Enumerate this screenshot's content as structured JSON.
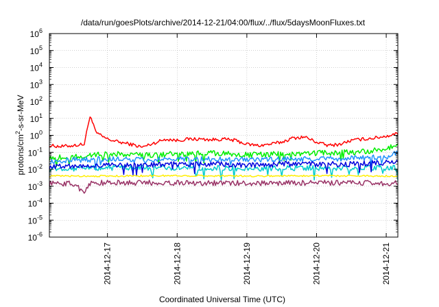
{
  "chart_data": {
    "type": "line",
    "title": "/data/run/goesPlots/archive/2014-12-21/04:00/flux/../flux/5daysMoonFluxes.txt",
    "xlabel": "Coordinated Universal Time (UTC)",
    "ylabel": {
      "pre": "protons/cm",
      "sup": "2",
      "post": "-s-sr-MeV"
    },
    "yscale": "log",
    "ylim": [
      1e-06,
      1000000.0
    ],
    "y_ticks": [
      {
        "base": "10",
        "exp": "-6",
        "value": 1e-06
      },
      {
        "base": "10",
        "exp": "-5",
        "value": 1e-05
      },
      {
        "base": "10",
        "exp": "-4",
        "value": 0.0001
      },
      {
        "base": "10",
        "exp": "-3",
        "value": 0.001
      },
      {
        "base": "10",
        "exp": "-2",
        "value": 0.01
      },
      {
        "base": "10",
        "exp": "-1",
        "value": 0.1
      },
      {
        "base": "10",
        "exp": "0",
        "value": 1
      },
      {
        "base": "10",
        "exp": "1",
        "value": 10
      },
      {
        "base": "10",
        "exp": "2",
        "value": 100
      },
      {
        "base": "10",
        "exp": "3",
        "value": 1000
      },
      {
        "base": "10",
        "exp": "4",
        "value": 10000
      },
      {
        "base": "10",
        "exp": "5",
        "value": 100000
      },
      {
        "base": "10",
        "exp": "6",
        "value": 1000000
      }
    ],
    "xlim": [
      "2014-12-16T04:00",
      "2014-12-21T04:00"
    ],
    "x_ticks": [
      {
        "label": "2014-12-17",
        "value": "2014-12-17T00:00"
      },
      {
        "label": "2014-12-18",
        "value": "2014-12-18T00:00"
      },
      {
        "label": "2014-12-19",
        "value": "2014-12-19T00:00"
      },
      {
        "label": "2014-12-20",
        "value": "2014-12-20T00:00"
      },
      {
        "label": "2014-12-21",
        "value": "2014-12-21T00:00"
      }
    ],
    "grid": true,
    "legend": "none",
    "series": [
      {
        "color": "#ff0000",
        "values": [
          [
            "2014-12-16T04:00",
            0.25
          ],
          [
            "2014-12-16T08:00",
            0.22
          ],
          [
            "2014-12-16T12:00",
            0.25
          ],
          [
            "2014-12-16T16:00",
            0.3
          ],
          [
            "2014-12-16T18:00",
            15.0
          ],
          [
            "2014-12-16T20:00",
            1.5
          ],
          [
            "2014-12-16T22:00",
            0.9
          ],
          [
            "2014-12-17T00:00",
            0.6
          ],
          [
            "2014-12-17T04:00",
            0.4
          ],
          [
            "2014-12-17T08:00",
            0.3
          ],
          [
            "2014-12-17T12:00",
            0.2
          ],
          [
            "2014-12-17T16:00",
            0.35
          ],
          [
            "2014-12-17T20:00",
            0.6
          ],
          [
            "2014-12-18T00:00",
            0.5
          ],
          [
            "2014-12-18T04:00",
            0.6
          ],
          [
            "2014-12-18T08:00",
            0.6
          ],
          [
            "2014-12-18T12:00",
            0.55
          ],
          [
            "2014-12-18T16:00",
            0.6
          ],
          [
            "2014-12-18T20:00",
            0.5
          ],
          [
            "2014-12-19T00:00",
            0.3
          ],
          [
            "2014-12-19T04:00",
            0.25
          ],
          [
            "2014-12-19T08:00",
            0.3
          ],
          [
            "2014-12-19T12:00",
            0.4
          ],
          [
            "2014-12-19T16:00",
            0.7
          ],
          [
            "2014-12-19T20:00",
            0.8
          ],
          [
            "2014-12-20T00:00",
            0.4
          ],
          [
            "2014-12-20T04:00",
            0.25
          ],
          [
            "2014-12-20T08:00",
            0.3
          ],
          [
            "2014-12-20T12:00",
            0.5
          ],
          [
            "2014-12-20T16:00",
            0.6
          ],
          [
            "2014-12-20T20:00",
            0.7
          ],
          [
            "2014-12-21T00:00",
            0.9
          ],
          [
            "2014-12-21T04:00",
            1.3
          ]
        ]
      },
      {
        "color": "#00ee00",
        "values": [
          [
            "2014-12-16T04:00",
            0.05
          ],
          [
            "2014-12-16T12:00",
            0.05
          ],
          [
            "2014-12-16T18:00",
            0.07
          ],
          [
            "2014-12-17T00:00",
            0.08
          ],
          [
            "2014-12-17T12:00",
            0.07
          ],
          [
            "2014-12-18T00:00",
            0.08
          ],
          [
            "2014-12-18T12:00",
            0.09
          ],
          [
            "2014-12-19T00:00",
            0.07
          ],
          [
            "2014-12-19T12:00",
            0.08
          ],
          [
            "2014-12-20T00:00",
            0.09
          ],
          [
            "2014-12-20T12:00",
            0.1
          ],
          [
            "2014-12-21T00:00",
            0.15
          ],
          [
            "2014-12-21T04:00",
            0.3
          ]
        ]
      },
      {
        "color": "#1e90ff",
        "values": [
          [
            "2014-12-16T04:00",
            0.03
          ],
          [
            "2014-12-16T12:00",
            0.035
          ],
          [
            "2014-12-17T00:00",
            0.04
          ],
          [
            "2014-12-17T12:00",
            0.035
          ],
          [
            "2014-12-18T00:00",
            0.04
          ],
          [
            "2014-12-18T12:00",
            0.04
          ],
          [
            "2014-12-19T00:00",
            0.035
          ],
          [
            "2014-12-19T12:00",
            0.04
          ],
          [
            "2014-12-20T00:00",
            0.04
          ],
          [
            "2014-12-20T12:00",
            0.045
          ],
          [
            "2014-12-21T00:00",
            0.05
          ],
          [
            "2014-12-21T04:00",
            0.1
          ]
        ]
      },
      {
        "color": "#00cccc",
        "values": [
          [
            "2014-12-16T04:00",
            0.01
          ],
          [
            "2014-12-17T00:00",
            0.012
          ],
          [
            "2014-12-18T00:00",
            0.012
          ],
          [
            "2014-12-19T00:00",
            0.011
          ],
          [
            "2014-12-20T00:00",
            0.012
          ],
          [
            "2014-12-21T04:00",
            0.012
          ]
        ]
      },
      {
        "color": "#0000dd",
        "values": [
          [
            "2014-12-16T04:00",
            0.015
          ],
          [
            "2014-12-16T12:00",
            0.015
          ],
          [
            "2014-12-17T00:00",
            0.018
          ],
          [
            "2014-12-17T12:00",
            0.017
          ],
          [
            "2014-12-18T00:00",
            0.02
          ],
          [
            "2014-12-18T12:00",
            0.02
          ],
          [
            "2014-12-19T00:00",
            0.018
          ],
          [
            "2014-12-19T12:00",
            0.02
          ],
          [
            "2014-12-20T00:00",
            0.02
          ],
          [
            "2014-12-20T12:00",
            0.02
          ],
          [
            "2014-12-21T00:00",
            0.025
          ],
          [
            "2014-12-21T04:00",
            0.03
          ]
        ]
      },
      {
        "color": "#ffee00",
        "values": [
          [
            "2014-12-16T04:00",
            0.004
          ],
          [
            "2014-12-17T00:00",
            0.004
          ],
          [
            "2014-12-18T00:00",
            0.0042
          ],
          [
            "2014-12-19T00:00",
            0.004
          ],
          [
            "2014-12-20T00:00",
            0.0042
          ],
          [
            "2014-12-21T04:00",
            0.004
          ]
        ]
      },
      {
        "color": "#993366",
        "values": [
          [
            "2014-12-16T04:00",
            0.0015
          ],
          [
            "2014-12-16T12:00",
            0.0014
          ],
          [
            "2014-12-16T16:00",
            0.0005
          ],
          [
            "2014-12-16T18:00",
            0.0015
          ],
          [
            "2014-12-17T00:00",
            0.0016
          ],
          [
            "2014-12-18T00:00",
            0.0016
          ],
          [
            "2014-12-19T00:00",
            0.0015
          ],
          [
            "2014-12-20T00:00",
            0.0016
          ],
          [
            "2014-12-21T04:00",
            0.0015
          ]
        ]
      }
    ]
  }
}
